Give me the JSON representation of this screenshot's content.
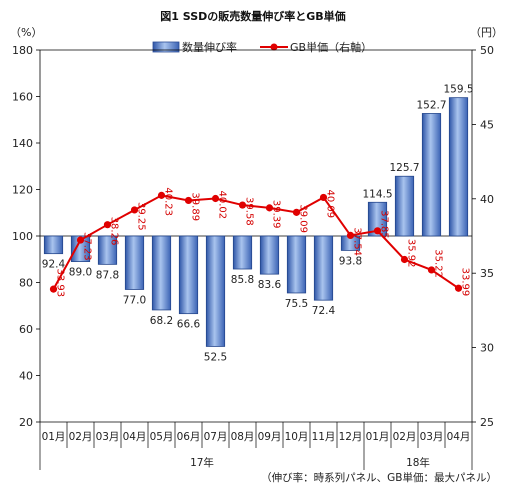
{
  "chart_data": {
    "type": "bar",
    "title": "図1  SSDの販売数量伸び率とGB単価",
    "left_unit": "（%）",
    "right_unit": "（円）",
    "note": "（伸び率：時系列パネル、GB単価：最大パネル）",
    "categories": [
      "01月",
      "02月",
      "03月",
      "04月",
      "05月",
      "06月",
      "07月",
      "08月",
      "09月",
      "10月",
      "11月",
      "12月",
      "01月",
      "02月",
      "03月",
      "04月"
    ],
    "groups": [
      {
        "label": "17年",
        "start": 0,
        "end": 11
      },
      {
        "label": "18年",
        "start": 12,
        "end": 15
      }
    ],
    "y_left": {
      "min": 20,
      "max": 180,
      "step": 20,
      "baseline": 100
    },
    "y_right": {
      "min": 25,
      "max": 50,
      "step": 5
    },
    "series": [
      {
        "name": "数量伸び率",
        "type": "bar",
        "axis": "left",
        "values": [
          92.4,
          89.0,
          87.8,
          77.0,
          68.2,
          66.6,
          52.5,
          85.8,
          83.6,
          75.5,
          72.4,
          93.8,
          114.5,
          125.7,
          152.7,
          159.5
        ],
        "labels": [
          "92.4",
          "89.0",
          "87.8",
          "77.0",
          "68.2",
          "66.6",
          "52.5",
          "85.8",
          "83.6",
          "75.5",
          "72.4",
          "93.8",
          "114.5",
          "125.7",
          "152.7",
          "159.5"
        ]
      },
      {
        "name": "GB単価（右軸）",
        "type": "line",
        "axis": "right",
        "color": "#e00000",
        "values": [
          33.93,
          37.23,
          38.26,
          39.25,
          40.23,
          39.89,
          40.02,
          39.58,
          39.39,
          39.09,
          40.09,
          37.54,
          37.85,
          35.92,
          35.22,
          33.99
        ],
        "labels": [
          "33.93",
          "37.23",
          "38.26",
          "39.25",
          "40.23",
          "39.89",
          "40.02",
          "39.58",
          "39.39",
          "39.09",
          "40.09",
          "37.54",
          "37.85",
          "35.92",
          "35.22",
          "33.99"
        ]
      }
    ]
  }
}
